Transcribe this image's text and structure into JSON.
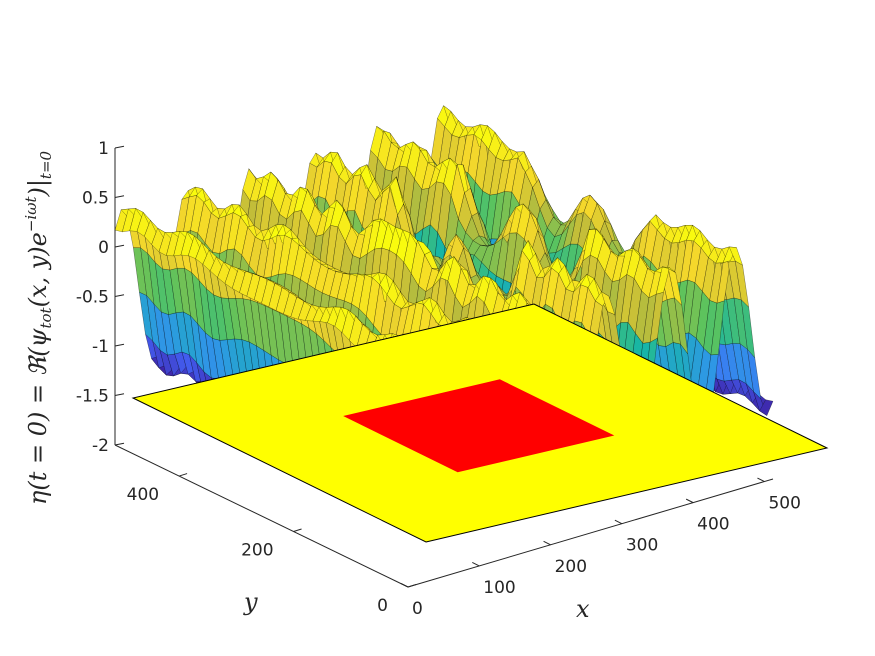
{
  "chart_data": {
    "type": "surface",
    "xlabel": "x",
    "ylabel": "y",
    "zlabel": "η(t = 0) = ℜ(ψ_tot(x, y)e^{−iωt})|_{t=0}",
    "zlabel_parts": {
      "lhs": "η(t = 0) = ℜ(ψ",
      "sub1": "tot",
      "mid": "(x, y)e",
      "sup": "−iωt",
      "rhs": ")|",
      "sub2": "t=0"
    },
    "xlim": [
      0,
      512
    ],
    "ylim": [
      0,
      512
    ],
    "zlim": [
      -2,
      1
    ],
    "xticks": [
      0,
      100,
      200,
      300,
      400,
      500
    ],
    "yticks": [
      0,
      200,
      400
    ],
    "zticks": [
      1,
      0.5,
      0,
      -0.5,
      -1,
      -1.5,
      -2
    ],
    "xtick_labels": [
      "0",
      "100",
      "200",
      "300",
      "400",
      "500"
    ],
    "ytick_labels": [
      "0",
      "200",
      "400"
    ],
    "ztick_labels": [
      "1",
      "0.5",
      "0",
      "-0.5",
      "-1",
      "-1.5",
      "-2"
    ],
    "floor_map": {
      "z": -2,
      "domain": {
        "x": [
          0,
          512
        ],
        "y": [
          0,
          512
        ],
        "color": "#ffff00"
      },
      "obstacle": {
        "x": [
          150,
          350
        ],
        "y": [
          150,
          350
        ],
        "color": "#ff0000"
      }
    },
    "surface": {
      "wave": "incident plane wave travelling along x with scattered field behind obstacle",
      "amplitude": 0.85,
      "offset": -0.45,
      "wavelength": 90,
      "colormap": [
        "#3e26a8",
        "#4367fd",
        "#2d9ae3",
        "#16b5a6",
        "#5bc35e",
        "#c0bc3a",
        "#f5d82b",
        "#f9fb0e"
      ]
    }
  }
}
